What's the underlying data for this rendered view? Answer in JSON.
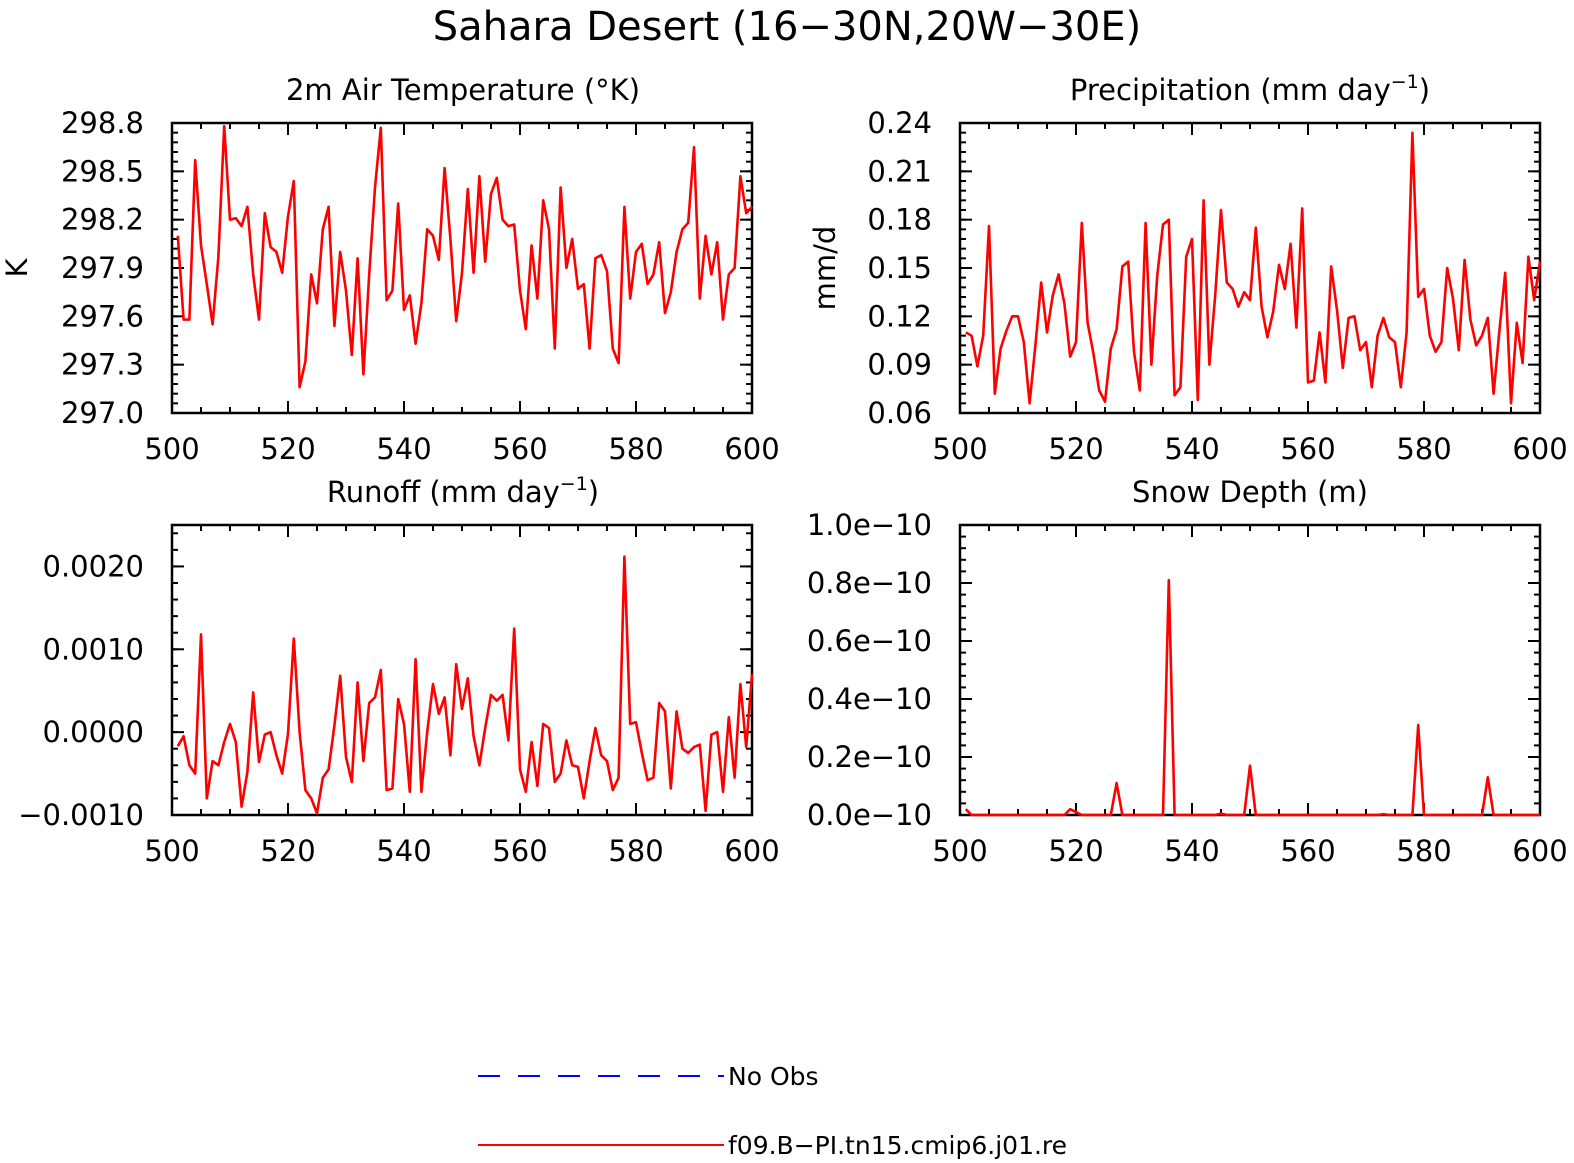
{
  "figure": {
    "title": "Sahara Desert (16−30N,20W−30E)",
    "legend": [
      {
        "label": "No Obs",
        "color": "#0000ff",
        "style": "dashed"
      },
      {
        "label": "f09.B−PI.tn15.cmip6.j01.re",
        "color": "#ff0000",
        "style": "solid"
      }
    ]
  },
  "chart_data": [
    {
      "type": "line",
      "title": "2m Air Temperature (°K)",
      "ylabel": "K",
      "xlim": [
        500,
        600
      ],
      "ylim": [
        297.0,
        298.8
      ],
      "xticks": [
        500,
        520,
        540,
        560,
        580,
        600
      ],
      "yticks": [
        "297.0",
        "297.3",
        "297.6",
        "297.9",
        "298.2",
        "298.5",
        "298.8"
      ],
      "x_start": 501,
      "series": [
        {
          "name": "f09.B−PI.tn15.cmip6.j01.re",
          "color": "#ff0000",
          "values": [
            298.1,
            297.58,
            297.58,
            298.57,
            298.04,
            297.8,
            297.55,
            297.97,
            298.78,
            298.2,
            298.21,
            298.16,
            298.28,
            297.86,
            297.58,
            298.24,
            298.03,
            298.0,
            297.87,
            298.22,
            298.44,
            297.16,
            297.32,
            297.86,
            297.68,
            298.14,
            298.28,
            297.54,
            298.0,
            297.76,
            297.36,
            297.96,
            297.24,
            297.86,
            298.4,
            298.77,
            297.7,
            297.76,
            298.3,
            297.64,
            297.73,
            297.43,
            297.68,
            298.14,
            298.1,
            297.95,
            298.52,
            298.08,
            297.57,
            297.87,
            298.39,
            297.87,
            298.47,
            297.94,
            298.36,
            298.46,
            298.2,
            298.16,
            298.17,
            297.76,
            297.52,
            298.04,
            297.71,
            298.32,
            298.14,
            297.4,
            298.4,
            297.9,
            298.08,
            297.77,
            297.8,
            297.4,
            297.96,
            297.98,
            297.88,
            297.4,
            297.31,
            298.28,
            297.71,
            298.0,
            298.05,
            297.8,
            297.86,
            298.06,
            297.62,
            297.75,
            298.0,
            298.14,
            298.18,
            298.65,
            297.71,
            298.1,
            297.86,
            298.06,
            297.58,
            297.86,
            297.9,
            298.47,
            298.24,
            298.28
          ]
        }
      ]
    },
    {
      "type": "line",
      "title": "Precipitation (mm day⁻¹)",
      "title_main": "Precipitation (mm day",
      "title_sup": "−1",
      "title_end": ")",
      "ylabel": "mm/d",
      "xlim": [
        500,
        600
      ],
      "ylim": [
        0.06,
        0.24
      ],
      "xticks": [
        500,
        520,
        540,
        560,
        580,
        600
      ],
      "yticks": [
        "0.06",
        "0.09",
        "0.12",
        "0.15",
        "0.18",
        "0.21",
        "0.24"
      ],
      "x_start": 501,
      "series": [
        {
          "name": "f09.B−PI.tn15.cmip6.j01.re",
          "color": "#ff0000",
          "values": [
            0.11,
            0.108,
            0.089,
            0.108,
            0.176,
            0.072,
            0.1,
            0.111,
            0.12,
            0.12,
            0.104,
            0.066,
            0.102,
            0.141,
            0.11,
            0.133,
            0.146,
            0.128,
            0.095,
            0.104,
            0.178,
            0.116,
            0.097,
            0.074,
            0.067,
            0.1,
            0.112,
            0.151,
            0.154,
            0.098,
            0.074,
            0.178,
            0.09,
            0.145,
            0.177,
            0.18,
            0.071,
            0.076,
            0.157,
            0.168,
            0.068,
            0.192,
            0.09,
            0.133,
            0.186,
            0.141,
            0.137,
            0.126,
            0.135,
            0.13,
            0.175,
            0.126,
            0.107,
            0.123,
            0.152,
            0.137,
            0.165,
            0.113,
            0.187,
            0.079,
            0.08,
            0.11,
            0.079,
            0.151,
            0.124,
            0.088,
            0.119,
            0.12,
            0.099,
            0.104,
            0.076,
            0.108,
            0.119,
            0.107,
            0.104,
            0.076,
            0.11,
            0.234,
            0.132,
            0.137,
            0.108,
            0.098,
            0.104,
            0.15,
            0.131,
            0.099,
            0.155,
            0.118,
            0.102,
            0.108,
            0.119,
            0.072,
            0.111,
            0.147,
            0.066,
            0.116,
            0.091,
            0.157,
            0.13,
            0.154
          ]
        }
      ]
    },
    {
      "type": "line",
      "title": "Runoff (mm day⁻¹)",
      "title_main": "Runoff (mm day",
      "title_sup": "−1",
      "title_end": ")",
      "ylabel": "",
      "xlim": [
        500,
        600
      ],
      "ylim": [
        -0.001,
        0.0025
      ],
      "xticks": [
        500,
        520,
        540,
        560,
        580,
        600
      ],
      "yticks": [
        "−0.0010",
        "0.0000",
        "0.0010",
        "0.0020"
      ],
      "ytick_values": [
        -0.001,
        0.0,
        0.001,
        0.002
      ],
      "x_start": 501,
      "series": [
        {
          "name": "f09.B−PI.tn15.cmip6.j01.re",
          "color": "#ff0000",
          "values": [
            -0.00017,
            -5e-05,
            -0.0004,
            -0.0005,
            0.00118,
            -0.0008,
            -0.00035,
            -0.0004,
            -0.00012,
            0.0001,
            -0.00012,
            -0.0009,
            -0.00048,
            0.00048,
            -0.00036,
            -3e-05,
            0.0,
            -0.00028,
            -0.0005,
            -2e-05,
            0.00113,
            0.0,
            -0.0007,
            -0.0008,
            -0.00098,
            -0.00055,
            -0.00045,
            8e-05,
            0.00068,
            -0.0003,
            -0.0006,
            0.0006,
            -0.00035,
            0.00035,
            0.00042,
            0.00075,
            -0.0007,
            -0.00068,
            0.0004,
            0.0001,
            -0.00072,
            0.00088,
            -0.00072,
            0.0,
            0.00058,
            0.00022,
            0.00042,
            -0.00028,
            0.00082,
            0.00028,
            0.00065,
            -5e-05,
            -0.0004,
            5e-05,
            0.00045,
            0.00038,
            0.00045,
            -0.0001,
            0.00125,
            -0.00045,
            -0.00072,
            -0.00012,
            -0.00065,
            0.0001,
            5e-05,
            -0.0006,
            -0.0005,
            -0.0001,
            -0.0004,
            -0.00042,
            -0.0008,
            -0.00035,
            5e-05,
            -0.00028,
            -0.00035,
            -0.0007,
            -0.00055,
            0.00212,
            0.0001,
            0.00012,
            -0.00025,
            -0.00058,
            -0.00055,
            0.00035,
            0.00025,
            -0.00068,
            0.00025,
            -0.0002,
            -0.00025,
            -0.00018,
            -0.00015,
            -0.00095,
            -3e-05,
            0.0,
            -0.00072,
            0.00018,
            -0.00055,
            0.00058,
            -0.00018,
            0.0007
          ]
        }
      ]
    },
    {
      "type": "line",
      "title": "Snow Depth (m)",
      "ylabel": "",
      "xlim": [
        500,
        600
      ],
      "ylim": [
        0.0,
        1e-10
      ],
      "xticks": [
        500,
        520,
        540,
        560,
        580,
        600
      ],
      "yticks": [
        "0.0e−10",
        "0.2e−10",
        "0.4e−10",
        "0.6e−10",
        "0.8e−10",
        "1.0e−10"
      ],
      "ytick_values": [
        0.0,
        2e-11,
        4e-11,
        6e-11,
        8e-11,
        1e-10
      ],
      "x_start": 501,
      "series": [
        {
          "name": "f09.B−PI.tn15.cmip6.j01.re",
          "color": "#ff0000",
          "values": [
            2e-12,
            0,
            0,
            0,
            0,
            0,
            0,
            0,
            0,
            0,
            0,
            0,
            0,
            0,
            0,
            0,
            0,
            0,
            2e-12,
            1e-12,
            0,
            0,
            0,
            0,
            0,
            0,
            1.1e-11,
            0,
            0,
            0,
            0,
            0,
            0,
            0,
            0,
            8.1e-11,
            0,
            0,
            0,
            0,
            0,
            0,
            0,
            0,
            5e-13,
            0,
            0,
            0,
            0,
            1.7e-11,
            0,
            0,
            0,
            0,
            0,
            0,
            0,
            0,
            0,
            0,
            0,
            0,
            0,
            0,
            0,
            0,
            0,
            0,
            0,
            0,
            0,
            0,
            3e-13,
            0,
            0,
            0,
            0,
            0,
            3.1e-11,
            0,
            0,
            0,
            0,
            0,
            0,
            0,
            0,
            0,
            0,
            0,
            1.3e-11,
            0,
            0,
            0,
            0,
            0,
            0,
            0,
            0,
            0
          ]
        }
      ]
    }
  ]
}
